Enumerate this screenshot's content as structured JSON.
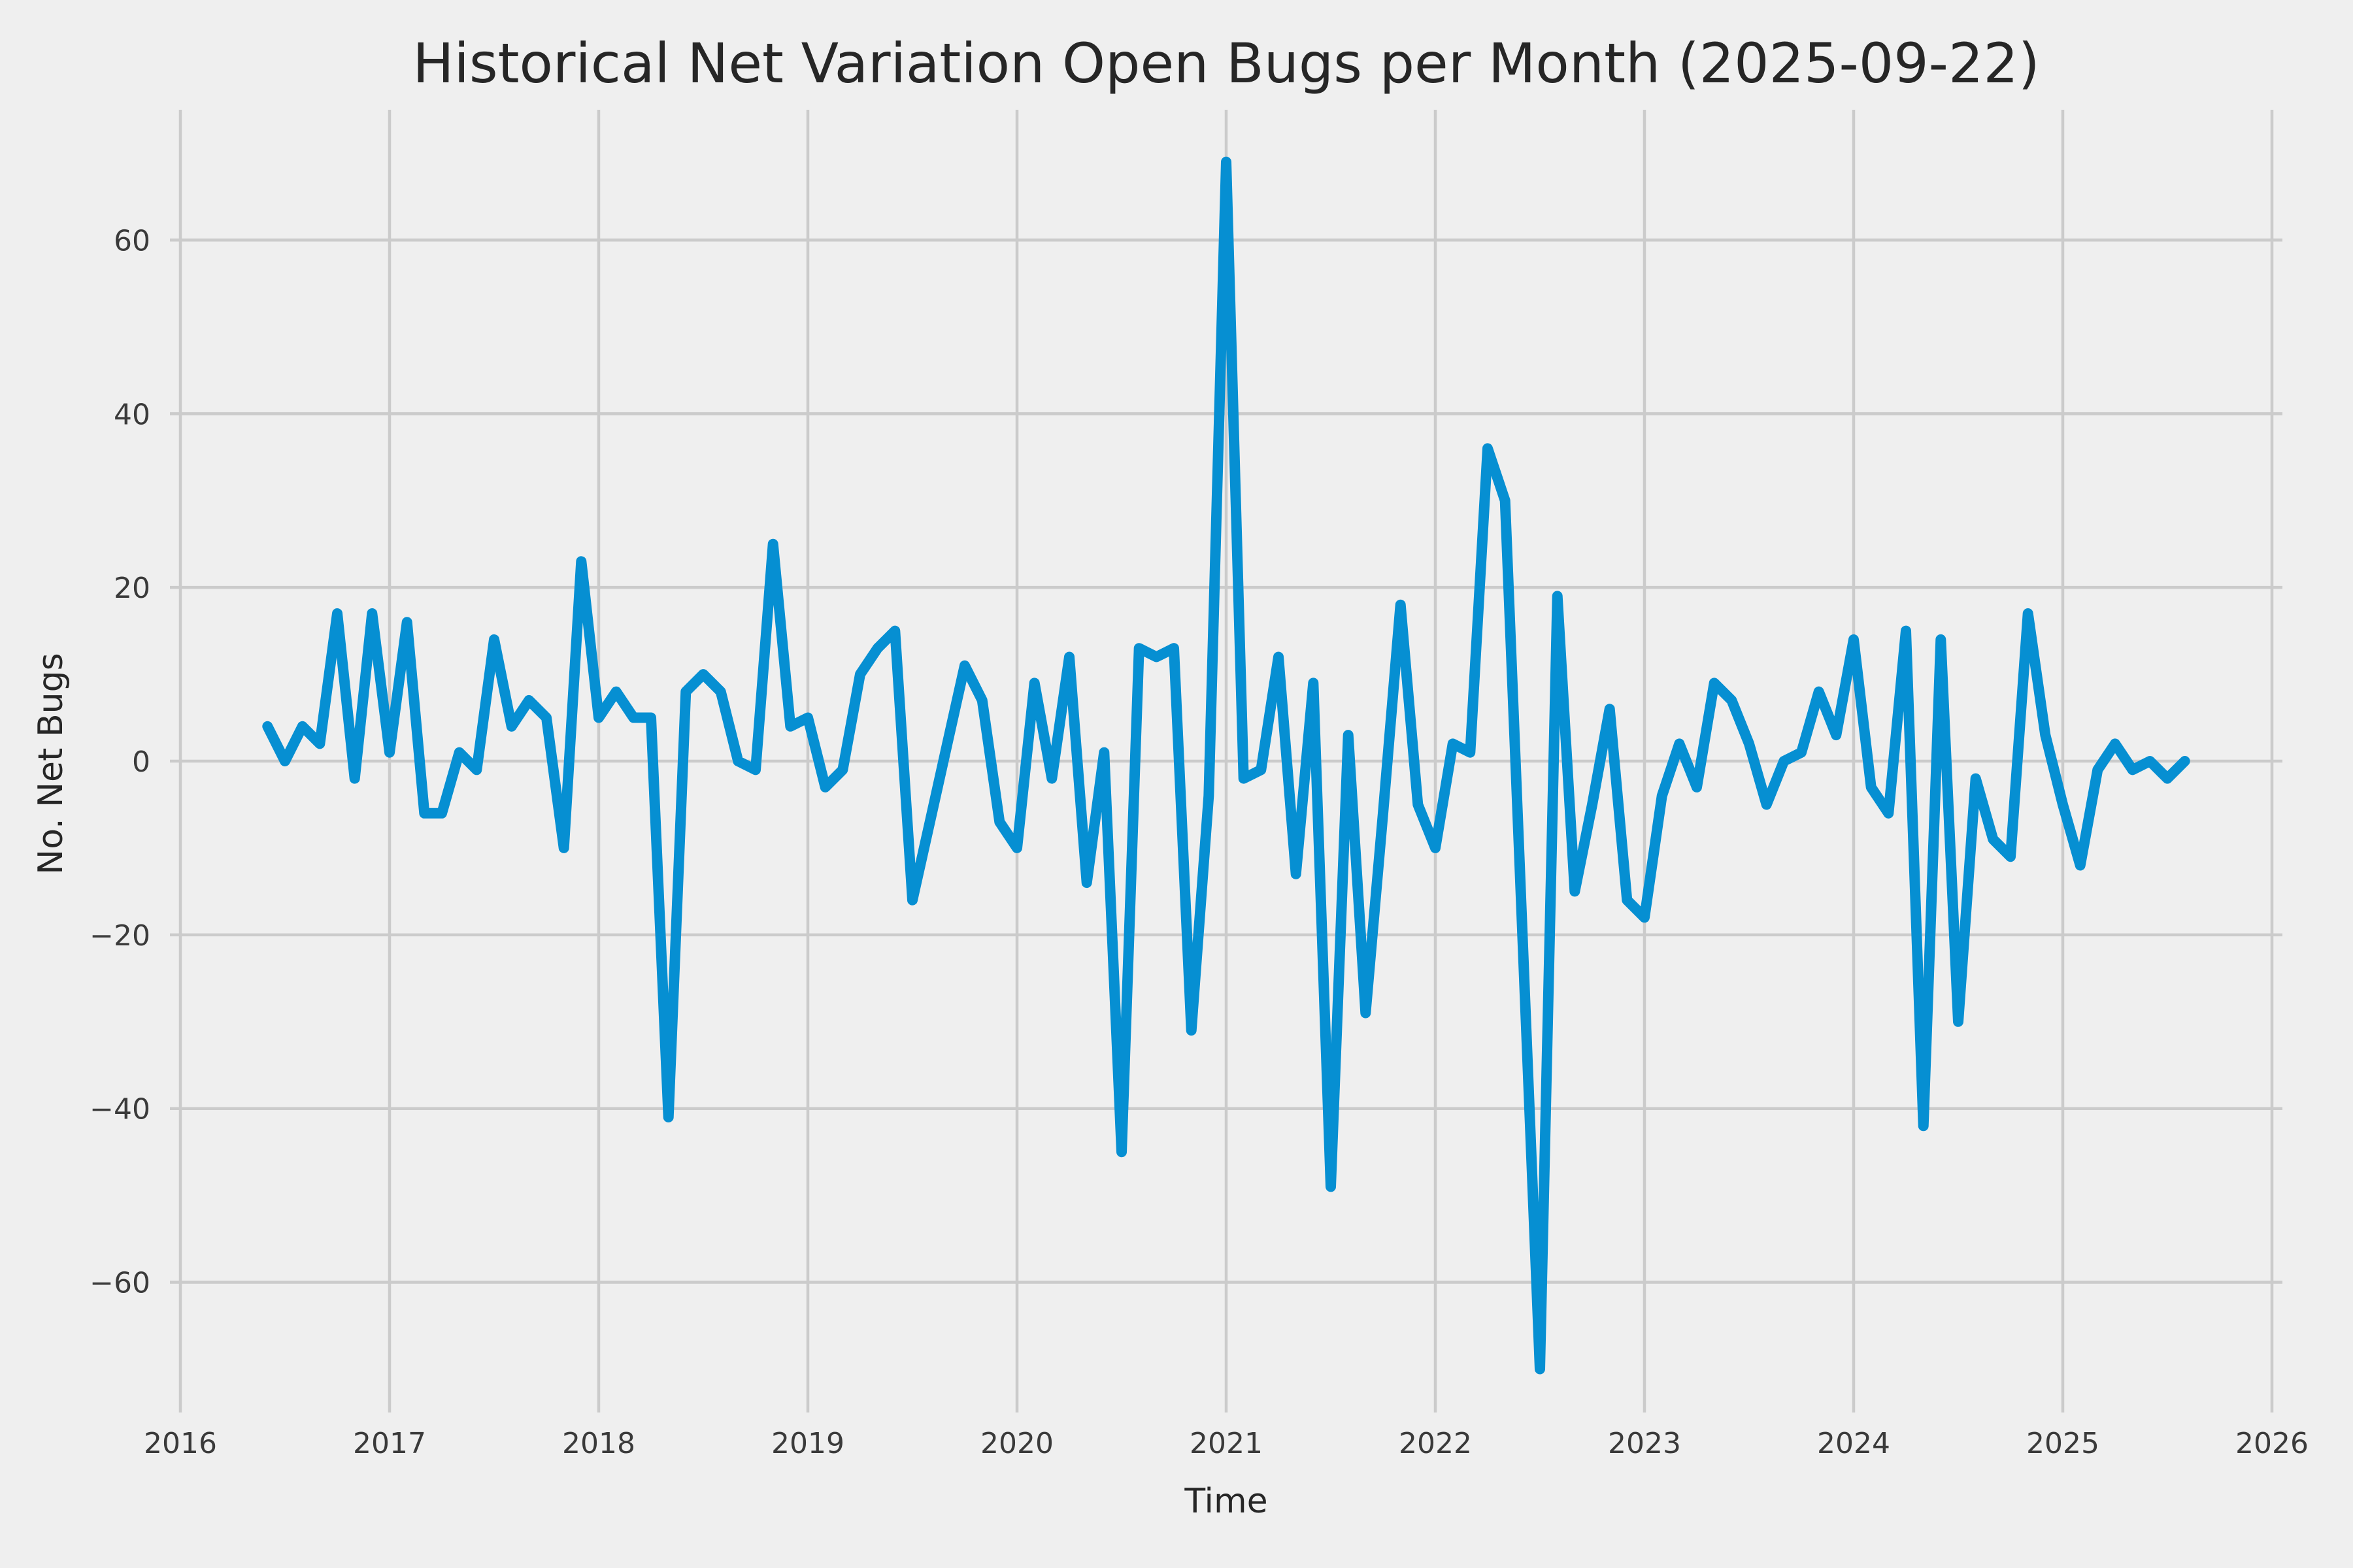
{
  "page": {
    "background_color": "#efefef",
    "grid_color": "#cbcbcb",
    "tick_label_color": "#3a3a3a",
    "text_color": "#262626"
  },
  "chart_data": {
    "type": "line",
    "title": "Historical Net Variation Open Bugs per Month (2025-09-22)",
    "xlabel": "Time",
    "ylabel": "No. Net Bugs",
    "legend_position": "none",
    "grid": true,
    "line_color": "#068fd2",
    "line_width": 16,
    "x_ticks": [
      2016,
      2017,
      2018,
      2019,
      2020,
      2021,
      2022,
      2023,
      2024,
      2025,
      2026
    ],
    "y_ticks": [
      -60,
      -40,
      -20,
      0,
      20,
      40,
      60
    ],
    "xlim": [
      2015.95,
      2026.05
    ],
    "ylim": [
      -75,
      75
    ],
    "series": [
      {
        "name": "net-variation-open-bugs",
        "frequency": "monthly",
        "start_year": 2016,
        "start_month": 6,
        "values": [
          4,
          0,
          4,
          2,
          17,
          -2,
          17,
          1,
          16,
          -6,
          -6,
          1,
          -1,
          14,
          4,
          7,
          5,
          -10,
          23,
          5,
          8,
          5,
          5,
          -41,
          8,
          10,
          8,
          0,
          -1,
          25,
          4,
          5,
          -3,
          -1,
          10,
          13,
          15,
          -16,
          -7,
          2,
          11,
          7,
          -7,
          -10,
          9,
          -2,
          12,
          -14,
          1,
          -45,
          13,
          12,
          13,
          -31,
          -4,
          69,
          -2,
          -1,
          12,
          -13,
          9,
          -49,
          3,
          -29,
          -6,
          18,
          -5,
          -10,
          2,
          1,
          36,
          30,
          -20,
          -70,
          19,
          -15,
          -5,
          6,
          -16,
          -18,
          -4,
          2,
          -3,
          9,
          7,
          2,
          -5,
          0,
          1,
          8,
          3,
          14,
          -3,
          -6,
          15,
          -42,
          14,
          -30,
          -2,
          -9,
          -11,
          17,
          3,
          -5,
          -12,
          -1,
          2,
          -1,
          0,
          -2,
          0
        ]
      }
    ]
  }
}
